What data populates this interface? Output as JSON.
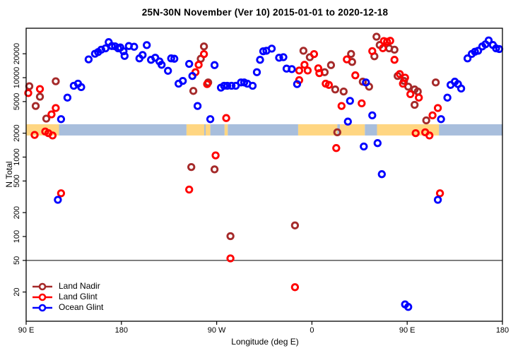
{
  "chart_data": {
    "type": "scatter",
    "title": "25N-30N November (Ver 10)   2015-01-01 to 2020-12-18",
    "ylabel": "N Total",
    "xlabel": "Longitude (deg E)",
    "y_scale": "log",
    "x_range_deg_continued": [
      90,
      540
    ],
    "y_ticks": [
      {
        "value": 20000,
        "label": "20000"
      },
      {
        "value": 10000,
        "label": "10000"
      },
      {
        "value": 5000,
        "label": "5000"
      },
      {
        "value": 2000,
        "label": "2000"
      },
      {
        "value": 1000,
        "label": "1000"
      },
      {
        "value": 500,
        "label": "500"
      },
      {
        "value": 200,
        "label": "200"
      },
      {
        "value": 100,
        "label": "100"
      },
      {
        "value": 50,
        "label": "50"
      },
      {
        "value": 20,
        "label": "20"
      }
    ],
    "x_ticks": [
      {
        "pos": 90,
        "label": "90 E"
      },
      {
        "pos": 180,
        "label": "180"
      },
      {
        "pos": 270,
        "label": "90 W"
      },
      {
        "pos": 360,
        "label": "0"
      },
      {
        "pos": 450,
        "label": "90 E"
      },
      {
        "pos": 540,
        "label": "180"
      }
    ],
    "reference_line_n": 50,
    "map_band": {
      "n_range": [
        1870,
        2590
      ],
      "land_color": "#FFD682",
      "ocean_color": "#A8BEDC",
      "segments": [
        {
          "from": 90,
          "to": 121,
          "type": "land"
        },
        {
          "from": 121,
          "to": 241.5,
          "type": "ocean"
        },
        {
          "from": 241.5,
          "to": 264,
          "type": "land"
        },
        {
          "from": 258.3,
          "to": 259.6,
          "type": "ocean"
        },
        {
          "from": 264,
          "to": 277.5,
          "type": "ocean"
        },
        {
          "from": 277.5,
          "to": 280.5,
          "type": "land"
        },
        {
          "from": 280.5,
          "to": 347,
          "type": "ocean"
        },
        {
          "from": 347,
          "to": 384,
          "type": "land"
        },
        {
          "from": 384,
          "to": 386.5,
          "type": "ocean"
        },
        {
          "from": 386.5,
          "to": 410,
          "type": "land"
        },
        {
          "from": 410,
          "to": 421.5,
          "type": "ocean"
        },
        {
          "from": 421.5,
          "to": 480,
          "type": "land"
        },
        {
          "from": 480,
          "to": 540,
          "type": "ocean"
        }
      ]
    },
    "series": [
      {
        "name": "Land Nadir",
        "color": "#A52A2A",
        "points": [
          [
            93,
            7800
          ],
          [
            99,
            4400
          ],
          [
            103,
            5750
          ],
          [
            109,
            3050
          ],
          [
            118,
            9000
          ],
          [
            246,
            750
          ],
          [
            248,
            6800
          ],
          [
            255,
            17300
          ],
          [
            258,
            24700
          ],
          [
            262,
            8700
          ],
          [
            268,
            700
          ],
          [
            283,
            101
          ],
          [
            344,
            138
          ],
          [
            352,
            21800
          ],
          [
            358,
            18100
          ],
          [
            372,
            11700
          ],
          [
            378,
            14400
          ],
          [
            382,
            7100
          ],
          [
            384,
            2050
          ],
          [
            390,
            6700
          ],
          [
            397,
            19900
          ],
          [
            398,
            15800
          ],
          [
            408,
            8900
          ],
          [
            414,
            7700
          ],
          [
            419,
            18600
          ],
          [
            421,
            32800
          ],
          [
            424,
            25800
          ],
          [
            433,
            23400
          ],
          [
            438,
            22500
          ],
          [
            441,
            10500
          ],
          [
            447,
            9100
          ],
          [
            451,
            7700
          ],
          [
            457,
            7100
          ],
          [
            457,
            4550
          ],
          [
            460,
            6700
          ],
          [
            468,
            2900
          ],
          [
            477,
            8700
          ]
        ]
      },
      {
        "name": "Land Glint",
        "color": "#FF0000",
        "points": [
          [
            92,
            6400
          ],
          [
            103,
            7200
          ],
          [
            114,
            3450
          ],
          [
            118,
            4150
          ],
          [
            123,
            350
          ],
          [
            98,
            1900
          ],
          [
            108,
            2100
          ],
          [
            111,
            2000
          ],
          [
            115,
            1870
          ],
          [
            244,
            390
          ],
          [
            250,
            11700
          ],
          [
            253,
            14500
          ],
          [
            258,
            19800
          ],
          [
            261,
            8300
          ],
          [
            269,
            1050
          ],
          [
            279,
            3100
          ],
          [
            283,
            53
          ],
          [
            344,
            23
          ],
          [
            348,
            12300
          ],
          [
            348,
            9300
          ],
          [
            353,
            14500
          ],
          [
            356,
            12300
          ],
          [
            362,
            19800
          ],
          [
            366,
            13100
          ],
          [
            367,
            11400
          ],
          [
            373,
            8400
          ],
          [
            376,
            8100
          ],
          [
            383,
            1300
          ],
          [
            388,
            4400
          ],
          [
            393,
            17000
          ],
          [
            401,
            10700
          ],
          [
            407,
            4750
          ],
          [
            417,
            21600
          ],
          [
            427,
            23500
          ],
          [
            428,
            28900
          ],
          [
            431,
            28300
          ],
          [
            434,
            29100
          ],
          [
            438,
            16800
          ],
          [
            443,
            11100
          ],
          [
            446,
            8400
          ],
          [
            448,
            10000
          ],
          [
            453,
            6200
          ],
          [
            461,
            5600
          ],
          [
            458,
            2000
          ],
          [
            467,
            2050
          ],
          [
            471,
            1870
          ],
          [
            474,
            3350
          ],
          [
            479,
            4150
          ],
          [
            481,
            350
          ]
        ]
      },
      {
        "name": "Ocean Glint",
        "color": "#0000FF",
        "points": [
          [
            120,
            290
          ],
          [
            123,
            3000
          ],
          [
            129,
            5600
          ],
          [
            135,
            7900
          ],
          [
            139,
            8400
          ],
          [
            142,
            7600
          ],
          [
            149,
            17000
          ],
          [
            155,
            20000
          ],
          [
            158,
            21000
          ],
          [
            161,
            22500
          ],
          [
            165,
            23400
          ],
          [
            168,
            28000
          ],
          [
            171,
            25000
          ],
          [
            174,
            24800
          ],
          [
            177,
            23400
          ],
          [
            179,
            24000
          ],
          [
            182,
            21500
          ],
          [
            183,
            18800
          ],
          [
            187,
            25000
          ],
          [
            192,
            24500
          ],
          [
            197,
            17500
          ],
          [
            200,
            19300
          ],
          [
            204,
            25700
          ],
          [
            208,
            16800
          ],
          [
            212,
            17800
          ],
          [
            216,
            16000
          ],
          [
            218,
            14500
          ],
          [
            224,
            12200
          ],
          [
            227,
            17500
          ],
          [
            230,
            17300
          ],
          [
            234,
            8400
          ],
          [
            238,
            9100
          ],
          [
            244,
            14900
          ],
          [
            247,
            10500
          ],
          [
            252,
            4400
          ],
          [
            264,
            3000
          ],
          [
            268,
            14400
          ],
          [
            274,
            7500
          ],
          [
            277,
            7900
          ],
          [
            280,
            7900
          ],
          [
            284,
            7900
          ],
          [
            288,
            7900
          ],
          [
            293,
            8700
          ],
          [
            296,
            8700
          ],
          [
            299,
            8400
          ],
          [
            304,
            7900
          ],
          [
            308,
            11700
          ],
          [
            311,
            16800
          ],
          [
            314,
            21500
          ],
          [
            317,
            21800
          ],
          [
            322,
            23200
          ],
          [
            329,
            17800
          ],
          [
            333,
            18100
          ],
          [
            336,
            13000
          ],
          [
            341,
            12800
          ],
          [
            346,
            8300
          ],
          [
            394,
            2800
          ],
          [
            396,
            5100
          ],
          [
            409,
            1360
          ],
          [
            411,
            8700
          ],
          [
            417,
            3350
          ],
          [
            422,
            1500
          ],
          [
            426,
            610
          ],
          [
            448,
            14
          ],
          [
            451,
            13
          ],
          [
            479,
            290
          ],
          [
            482,
            3000
          ],
          [
            488,
            5600
          ],
          [
            491,
            8100
          ],
          [
            495,
            8900
          ],
          [
            498,
            8300
          ],
          [
            501,
            7300
          ],
          [
            507,
            17500
          ],
          [
            511,
            19900
          ],
          [
            514,
            21200
          ],
          [
            517,
            21800
          ],
          [
            521,
            24700
          ],
          [
            524,
            26300
          ],
          [
            527,
            29400
          ],
          [
            531,
            25800
          ],
          [
            534,
            23400
          ],
          [
            537,
            22900
          ]
        ]
      }
    ]
  }
}
